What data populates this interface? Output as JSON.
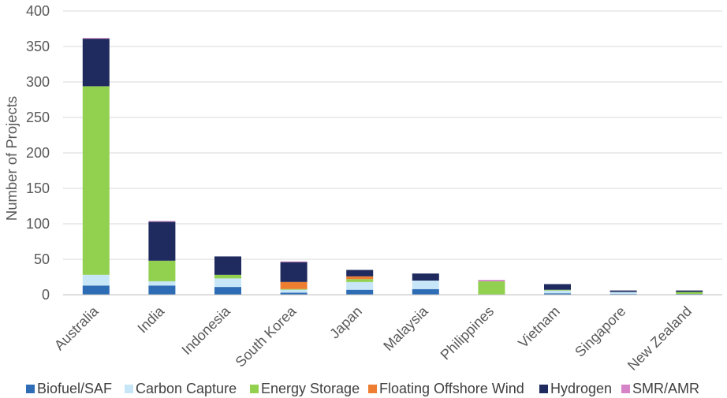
{
  "chart_data": {
    "type": "bar",
    "stacked": true,
    "ylabel": "Number of Projects",
    "ylim": [
      0,
      400
    ],
    "yticks": [
      0,
      50,
      100,
      150,
      200,
      250,
      300,
      350,
      400
    ],
    "grid": true,
    "legend": "bottom",
    "categories": [
      "Australia",
      "India",
      "Indonesia",
      "South Korea",
      "Japan",
      "Malaysia",
      "Philippines",
      "Vietnam",
      "Singapore",
      "New Zealand"
    ],
    "series": [
      {
        "name": "Biofuel/SAF",
        "color": "#2e6db5",
        "values": [
          13,
          13,
          11,
          3,
          7,
          8,
          0,
          2,
          1,
          1
        ]
      },
      {
        "name": "Carbon Capture",
        "color": "#c7e6f8",
        "values": [
          15,
          6,
          12,
          4,
          11,
          12,
          0,
          4,
          3,
          0
        ]
      },
      {
        "name": "Energy Storage",
        "color": "#92d050",
        "values": [
          266,
          29,
          5,
          1,
          4,
          0,
          19,
          1,
          0,
          3
        ]
      },
      {
        "name": "Floating Offshore Wind",
        "color": "#ed7d31",
        "values": [
          0,
          0,
          0,
          10,
          4,
          0,
          0,
          0,
          0,
          0
        ]
      },
      {
        "name": "Hydrogen",
        "color": "#1f2a5e",
        "values": [
          67,
          55,
          26,
          28,
          9,
          10,
          0,
          8,
          2,
          2
        ]
      },
      {
        "name": "SMR/AMR",
        "color": "#d584c8",
        "values": [
          1,
          1,
          0,
          1,
          0,
          0,
          2,
          0,
          0,
          0
        ]
      }
    ]
  }
}
